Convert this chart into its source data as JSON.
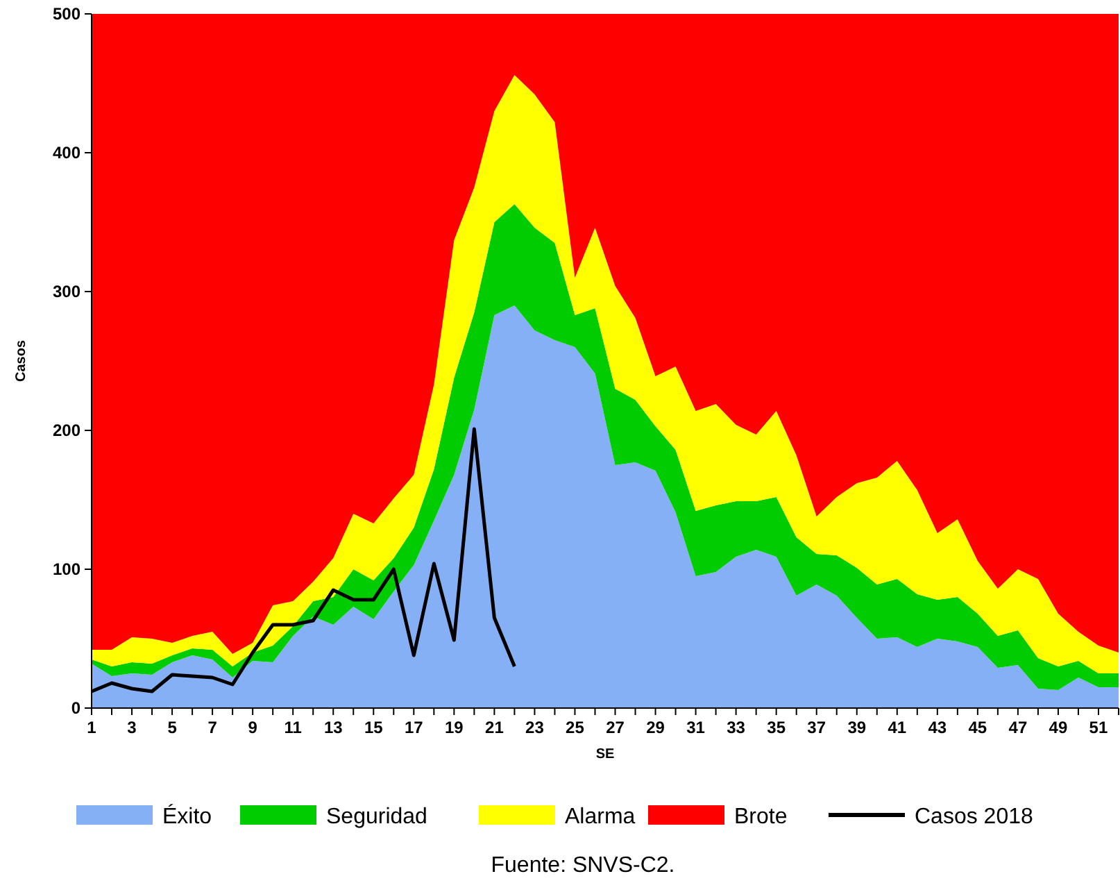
{
  "chart_data": {
    "type": "area",
    "stacked": true,
    "xlabel": "SE",
    "ylabel": "Casos",
    "x": [
      1,
      2,
      3,
      4,
      5,
      6,
      7,
      8,
      9,
      10,
      11,
      12,
      13,
      14,
      15,
      16,
      17,
      18,
      19,
      20,
      21,
      22,
      23,
      24,
      25,
      26,
      27,
      28,
      29,
      30,
      31,
      32,
      33,
      34,
      35,
      36,
      37,
      38,
      39,
      40,
      41,
      42,
      43,
      44,
      45,
      46,
      47,
      48,
      49,
      50,
      51,
      52
    ],
    "xlim": [
      1,
      52
    ],
    "xticks": [
      1,
      {
        "value": 2,
        "label": null
      },
      3,
      {
        "value": 4,
        "label": null
      },
      5,
      {
        "value": 6,
        "label": null
      },
      7,
      {
        "value": 8,
        "label": null
      },
      9,
      {
        "value": 10,
        "label": null
      },
      11,
      {
        "value": 12,
        "label": null
      },
      13,
      {
        "value": 14,
        "label": null
      },
      15,
      {
        "value": 16,
        "label": null
      },
      17,
      {
        "value": 18,
        "label": null
      },
      19,
      {
        "value": 20,
        "label": null
      },
      21,
      {
        "value": 22,
        "label": null
      },
      23,
      {
        "value": 24,
        "label": null
      },
      25,
      {
        "value": 26,
        "label": null
      },
      27,
      {
        "value": 28,
        "label": null
      },
      29,
      {
        "value": 30,
        "label": null
      },
      31,
      {
        "value": 32,
        "label": null
      },
      33,
      {
        "value": 34,
        "label": null
      },
      35,
      {
        "value": 36,
        "label": null
      },
      37,
      {
        "value": 38,
        "label": null
      },
      39,
      {
        "value": 40,
        "label": null
      },
      41,
      {
        "value": 42,
        "label": null
      },
      43,
      {
        "value": 44,
        "label": null
      },
      45,
      {
        "value": 46,
        "label": null
      },
      47,
      {
        "value": 48,
        "label": null
      },
      49,
      {
        "value": 50,
        "label": null
      },
      51,
      {
        "value": 52,
        "label": null
      }
    ],
    "ylim": [
      0,
      500
    ],
    "yticks": [
      0,
      100,
      200,
      300,
      400,
      500
    ],
    "grid": false,
    "legend": "bottom",
    "series": [
      {
        "name": "Éxito",
        "color": "#86b0f5",
        "values": [
          32,
          23,
          25,
          24,
          33,
          38,
          35,
          22,
          34,
          33,
          52,
          66,
          60,
          73,
          64,
          84,
          103,
          135,
          168,
          215,
          283,
          290,
          272,
          265,
          260,
          241,
          175,
          177,
          171,
          141,
          95,
          98,
          109,
          114,
          109,
          81,
          89,
          81,
          65,
          50,
          51,
          44,
          50,
          48,
          44,
          29,
          31,
          14,
          13,
          22,
          15,
          15
        ]
      },
      {
        "name": "Seguridad",
        "color": "#00cc00",
        "values": [
          3,
          7,
          8,
          8,
          5,
          5,
          7,
          8,
          6,
          12,
          7,
          11,
          20,
          27,
          28,
          24,
          27,
          37,
          70,
          70,
          67,
          73,
          74,
          70,
          23,
          47,
          55,
          45,
          32,
          45,
          47,
          48,
          40,
          35,
          43,
          42,
          22,
          29,
          36,
          39,
          42,
          38,
          28,
          32,
          24,
          23,
          25,
          22,
          17,
          12,
          10,
          10
        ]
      },
      {
        "name": "Alarma",
        "color": "#ffff00",
        "values": [
          7,
          12,
          18,
          18,
          9,
          9,
          13,
          9,
          7,
          29,
          18,
          14,
          28,
          40,
          41,
          43,
          38,
          61,
          99,
          90,
          80,
          93,
          96,
          87,
          27,
          58,
          74,
          59,
          36,
          60,
          72,
          73,
          55,
          48,
          62,
          59,
          27,
          42,
          61,
          77,
          85,
          75,
          48,
          56,
          38,
          34,
          44,
          57,
          38,
          21,
          20,
          15
        ]
      },
      {
        "name": "Brote",
        "color": "#ff0000",
        "values": [
          458,
          458,
          449,
          450,
          453,
          448,
          445,
          461,
          453,
          426,
          423,
          409,
          392,
          360,
          367,
          349,
          332,
          267,
          163,
          125,
          70,
          44,
          58,
          78,
          190,
          154,
          196,
          219,
          261,
          254,
          286,
          281,
          296,
          303,
          286,
          318,
          362,
          348,
          338,
          334,
          322,
          343,
          374,
          364,
          394,
          414,
          400,
          407,
          432,
          445,
          455,
          460
        ]
      },
      {
        "name": "Casos 2018",
        "type": "line",
        "color": "#000000",
        "x": [
          1,
          2,
          3,
          4,
          5,
          6,
          7,
          8,
          9,
          10,
          11,
          12,
          13,
          14,
          15,
          16,
          17,
          18,
          19,
          20,
          21,
          22
        ],
        "values": [
          12,
          18,
          14,
          12,
          24,
          23,
          22,
          17,
          40,
          60,
          60,
          63,
          85,
          78,
          78,
          100,
          38,
          104,
          49,
          201,
          65,
          30
        ]
      }
    ],
    "annotations": [
      "Fuente: SNVS-C2."
    ]
  }
}
